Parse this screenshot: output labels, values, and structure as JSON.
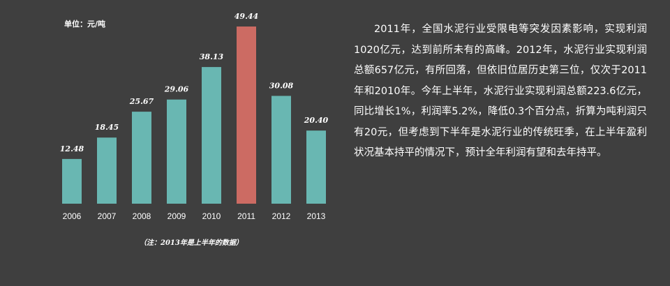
{
  "unit_label": "单位：元/吨",
  "note": "（注：2013年是上半年的数据）",
  "description": "2011年，全国水泥行业受限电等突发因素影响，实现利润1020亿元，达到前所未有的高峰。2012年，水泥行业实现利润总额657亿元，有所回落，但依旧位居历史第三位，仅次于2011年和2010年。今年上半年，水泥行业实现利润总额223.6亿元，同比增长1%，利润率5.2%，降低0.3个百分点，折算为吨利润只有20元，但考虑到下半年是水泥行业的传统旺季，在上半年盈利状况基本持平的情况下，预计全年利润有望和去年持平。",
  "colors": {
    "background": "#3f3f3f",
    "bar": "#69b7b2",
    "highlight": "#cc6b63",
    "text": "#ffffff"
  },
  "chart_data": {
    "type": "bar",
    "categories": [
      "2006",
      "2007",
      "2008",
      "2009",
      "2010",
      "2011",
      "2012",
      "2013"
    ],
    "values": [
      12.48,
      18.45,
      25.67,
      29.06,
      38.13,
      49.44,
      30.08,
      20.4
    ],
    "value_labels": [
      "12.48",
      "18.45",
      "25.67",
      "29.06",
      "38.13",
      "49.44",
      "30.08",
      "20.40"
    ],
    "highlight_category": "2011",
    "ylim": [
      0,
      49.44
    ],
    "grid": false,
    "legend": "none"
  }
}
